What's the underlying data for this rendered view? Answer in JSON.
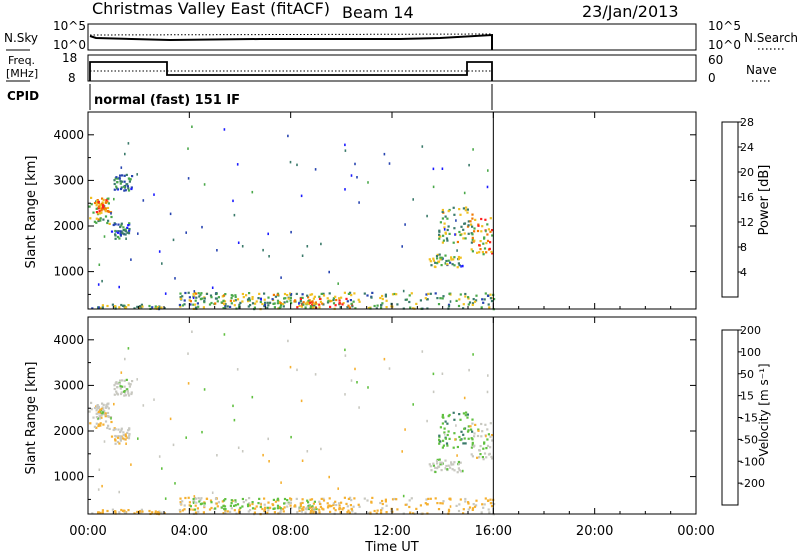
{
  "header": {
    "title": "Christmas Valley East (fitACF)",
    "beam": "Beam 14",
    "date": "23/Jan/2013"
  },
  "nsky_panel": {
    "left_label": "N.Sky",
    "left_ticks": [
      "10^5",
      "10^0"
    ],
    "right_ticks": [
      "10^5",
      "10^0"
    ],
    "right_label": "N.Search"
  },
  "freq_panel": {
    "left_label_1": "Freq.",
    "left_label_2": "[MHz]",
    "left_ticks": [
      "18",
      "8"
    ],
    "right_ticks": [
      "60",
      "0"
    ],
    "right_label": "Nave"
  },
  "cpid": {
    "label": "CPID",
    "value": "normal (fast) 151 IF"
  },
  "power_panel": {
    "ylabel": "Slant Range [km]",
    "yticks": [
      "1000",
      "2000",
      "3000",
      "4000"
    ],
    "colorbar_label": "Power [dB]",
    "colorbar_ticks": [
      "4",
      "8",
      "12",
      "16",
      "20",
      "24",
      "28"
    ]
  },
  "velocity_panel": {
    "ylabel": "Slant Range [km]",
    "yticks": [
      "1000",
      "2000",
      "3000",
      "4000"
    ],
    "colorbar_label": "Velocity [m s⁻¹]",
    "colorbar_ticks": [
      "-200",
      "-100",
      "-50",
      "-15",
      "15",
      "50",
      "100",
      "200"
    ]
  },
  "x_axis": {
    "label": "Time UT",
    "ticks": [
      "00:00",
      "04:00",
      "08:00",
      "12:00",
      "16:00",
      "20:00",
      "00:00"
    ]
  },
  "colors": {
    "power_scale": [
      "#1a1aff",
      "#2744b0",
      "#3a7a6a",
      "#4aa84a",
      "#f0c020",
      "#f07800",
      "#ff2020"
    ],
    "velocity_scale": [
      "#e01010",
      "#f05000",
      "#f08800",
      "#f5b030",
      "#c8c8c0",
      "#60c040",
      "#3a7a6a",
      "#2744b0"
    ]
  },
  "chart_data": {
    "type": "heatmap",
    "time_range_hours": [
      0,
      24
    ],
    "data_end_hour": 16,
    "range_km": [
      180,
      4500
    ],
    "power_db_range": [
      0,
      30
    ],
    "velocity_range": [
      -250,
      250
    ],
    "blobs": [
      {
        "t0": 0.0,
        "t1": 0.9,
        "r0": 2000,
        "r1": 2650,
        "power": 18,
        "vel": -12
      },
      {
        "t0": 0.3,
        "t1": 0.8,
        "r0": 2300,
        "r1": 2600,
        "power": 24,
        "vel": 0
      },
      {
        "t0": 1.0,
        "t1": 1.7,
        "r0": 2800,
        "r1": 3150,
        "power": 10,
        "vel": 5
      },
      {
        "t0": 0.9,
        "t1": 1.6,
        "r0": 1700,
        "r1": 2100,
        "power": 8,
        "vel": -10
      },
      {
        "t0": 0.1,
        "t1": 3.0,
        "r0": 200,
        "r1": 300,
        "power": 14,
        "vel": -25
      },
      {
        "t0": 3.5,
        "t1": 16.0,
        "r0": 200,
        "r1": 560,
        "power": 14,
        "vel": -22
      },
      {
        "t0": 4.0,
        "t1": 9.0,
        "r0": 300,
        "r1": 540,
        "power": 18,
        "vel": 30
      },
      {
        "t0": 8.0,
        "t1": 10.5,
        "r0": 220,
        "r1": 440,
        "power": 24,
        "vel": -30
      },
      {
        "t0": 13.4,
        "t1": 14.7,
        "r0": 1100,
        "r1": 1400,
        "power": 14,
        "vel": 5
      },
      {
        "t0": 13.8,
        "t1": 15.2,
        "r0": 1650,
        "r1": 2450,
        "power": 16,
        "vel": 35
      },
      {
        "t0": 15.0,
        "t1": 16.0,
        "r0": 1400,
        "r1": 2200,
        "power": 22,
        "vel": 0
      }
    ]
  }
}
